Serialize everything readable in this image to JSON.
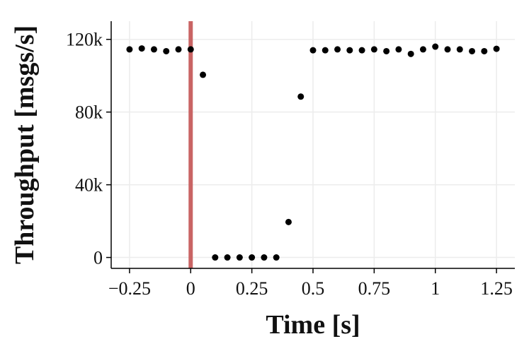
{
  "chart_data": {
    "type": "scatter",
    "title": "",
    "xlabel": "Time [s]",
    "ylabel": "Throughput [msgs/s]",
    "xlim": [
      -0.325,
      1.325
    ],
    "ylim": [
      -6000,
      130000
    ],
    "x_ticks": [
      {
        "value": -0.25,
        "label": "−0.25"
      },
      {
        "value": 0,
        "label": "0"
      },
      {
        "value": 0.25,
        "label": "0.25"
      },
      {
        "value": 0.5,
        "label": "0.5"
      },
      {
        "value": 0.75,
        "label": "0.75"
      },
      {
        "value": 1,
        "label": "1"
      },
      {
        "value": 1.25,
        "label": "1.25"
      }
    ],
    "y_ticks": [
      {
        "value": 0,
        "label": "0"
      },
      {
        "value": 40000,
        "label": "40k"
      },
      {
        "value": 80000,
        "label": "80k"
      },
      {
        "value": 120000,
        "label": "120k"
      }
    ],
    "grid": true,
    "marker_color": "#000000",
    "vline": {
      "x": 0,
      "color": "#c96464"
    },
    "series": [
      {
        "x": [
          -0.25,
          -0.2,
          -0.15,
          -0.1,
          -0.05,
          0,
          0.05,
          0.1,
          0.15,
          0.2,
          0.25,
          0.3,
          0.35,
          0.4,
          0.45,
          0.5,
          0.55,
          0.6,
          0.65,
          0.7,
          0.75,
          0.8,
          0.85,
          0.9,
          0.95,
          1.0,
          1.05,
          1.1,
          1.15,
          1.2,
          1.25
        ],
        "y": [
          114500,
          115000,
          114500,
          113500,
          114500,
          114500,
          100500,
          0,
          0,
          0,
          0,
          0,
          0,
          19500,
          88500,
          114000,
          114000,
          114500,
          114000,
          114000,
          114500,
          113500,
          114500,
          112000,
          114500,
          116000,
          114500,
          114500,
          113500,
          113500,
          114800
        ]
      }
    ]
  }
}
